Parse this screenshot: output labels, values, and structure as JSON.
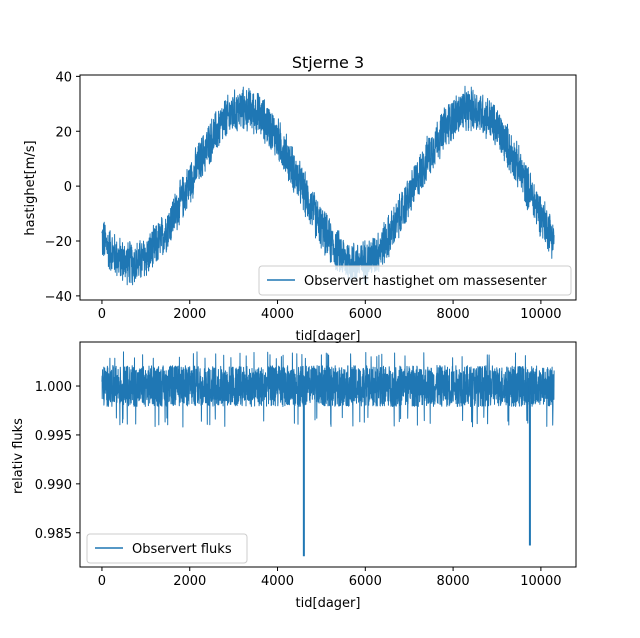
{
  "colors": {
    "series": "#1f77b4",
    "frame": "#000000",
    "legend_border": "#cccccc"
  },
  "chart_data": [
    {
      "type": "line",
      "title": "Stjerne 3",
      "xlabel": "tid[dager]",
      "ylabel": "hastighet[m/s]",
      "xlim": [
        -500,
        10800
      ],
      "ylim": [
        -41.5,
        40.5
      ],
      "xticks": [
        0,
        2000,
        4000,
        6000,
        8000,
        10000
      ],
      "yticks": [
        -40,
        -20,
        0,
        20,
        40
      ],
      "grid": false,
      "legend_position": "lower-right",
      "series": [
        {
          "name": "Observert hastighet om massesenter",
          "x_range": [
            0,
            10300
          ],
          "model": {
            "kind": "sinusoid",
            "amplitude": 28,
            "period_days": 5150,
            "peak_at_days": 3250,
            "noise_halfwidth": 9
          },
          "envelope": [
            {
              "x": 0,
              "min": -25,
              "max": -10
            },
            {
              "x": 700,
              "min": -38,
              "max": -17
            },
            {
              "x": 1600,
              "min": -28,
              "max": -3
            },
            {
              "x": 2400,
              "min": -1,
              "max": 25
            },
            {
              "x": 3250,
              "min": 19,
              "max": 38
            },
            {
              "x": 4000,
              "min": 4,
              "max": 30
            },
            {
              "x": 4800,
              "min": -27,
              "max": 3
            },
            {
              "x": 5900,
              "min": -37,
              "max": -16
            },
            {
              "x": 6800,
              "min": -28,
              "max": -6
            },
            {
              "x": 7500,
              "min": 3,
              "max": 28
            },
            {
              "x": 8400,
              "min": 18,
              "max": 38
            },
            {
              "x": 9200,
              "min": 10,
              "max": 34
            },
            {
              "x": 10000,
              "min": -15,
              "max": 13
            },
            {
              "x": 10300,
              "min": -22,
              "max": -10
            }
          ]
        }
      ]
    },
    {
      "type": "line",
      "title": "",
      "xlabel": "tid[dager]",
      "ylabel": "relativ fluks",
      "xlim": [
        -500,
        10800
      ],
      "ylim": [
        0.9815,
        1.0045
      ],
      "xticks": [
        0,
        2000,
        4000,
        6000,
        8000,
        10000
      ],
      "yticks": [
        0.985,
        0.99,
        0.995,
        1.0
      ],
      "ytick_labels": [
        "0.985",
        "0.990",
        "0.995",
        "1.000"
      ],
      "grid": false,
      "legend_position": "lower-left",
      "series": [
        {
          "name": "Observert fluks",
          "x_range": [
            0,
            10300
          ],
          "baseline": 1.0,
          "noise_band": [
            0.9968,
            1.0028
          ],
          "occasional_extremes": [
            0.9958,
            1.0035
          ],
          "dips": [
            {
              "x": 4600,
              "min": 0.9826
            },
            {
              "x": 9750,
              "min": 0.9837
            }
          ]
        }
      ]
    }
  ]
}
